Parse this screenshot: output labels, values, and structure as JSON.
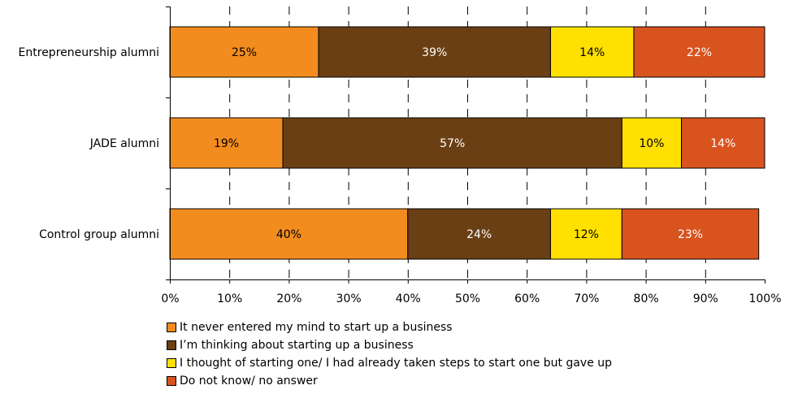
{
  "chart_data": {
    "type": "bar",
    "orientation": "horizontal",
    "stacked": true,
    "percent": true,
    "categories": [
      "Entrepreneurship alumni",
      "JADE alumni",
      "Control group alumni"
    ],
    "series": [
      {
        "name": "It never entered my mind to start up a business",
        "color": "#F28C1E",
        "values": [
          25,
          19,
          40
        ],
        "labels": [
          "25%",
          "19%",
          "40%"
        ]
      },
      {
        "name": "I’m thinking about starting up a business",
        "color": "#6B3F14",
        "values": [
          39,
          57,
          24
        ],
        "labels": [
          "39%",
          "57%",
          "24%"
        ]
      },
      {
        "name": "I thought of starting one/ I had already taken steps to start one but gave up",
        "color": "#FFE000",
        "values": [
          14,
          10,
          12
        ],
        "labels": [
          "14%",
          "10%",
          "12%"
        ]
      },
      {
        "name": "Do not know/ no answer",
        "color": "#D9531E",
        "values": [
          22,
          14,
          23
        ],
        "labels": [
          "22%",
          "14%",
          "23%"
        ]
      }
    ],
    "xlim": [
      0,
      100
    ],
    "xticks": [
      "0%",
      "10%",
      "20%",
      "30%",
      "40%",
      "50%",
      "60%",
      "70%",
      "80%",
      "90%",
      "100%"
    ],
    "grid": "dashed vertical",
    "legend_position": "bottom",
    "title": "",
    "xlabel": "",
    "ylabel": ""
  }
}
